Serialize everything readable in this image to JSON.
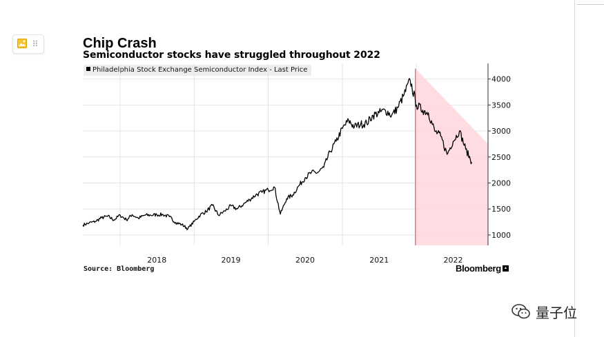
{
  "header": {
    "title": "Chip Crash",
    "subtitle": "Semiconductor stocks have struggled throughout 2022"
  },
  "legend": {
    "label": "Philadelphia Stock Exchange Semiconductor Index - Last Price"
  },
  "footer": {
    "source": "Source: Bloomberg",
    "brand": "Bloomberg"
  },
  "watermark": {
    "text": "量子位"
  },
  "toolbar": {
    "image_icon": "image-icon",
    "drag_icon": "drag-handle-icon"
  },
  "colors": {
    "line": "#000000",
    "highlight_fill": "#ffd6dd",
    "highlight_stroke": "#c0485f",
    "grid": "#e4e4e4"
  },
  "chart_data": {
    "type": "line",
    "title": "Chip Crash",
    "subtitle": "Semiconductor stocks have struggled throughout 2022",
    "series": [
      {
        "name": "Philadelphia Stock Exchange Semiconductor Index - Last Price",
        "points": [
          [
            "2017-07-01",
            1190
          ],
          [
            "2017-08-01",
            1230
          ],
          [
            "2017-09-01",
            1260
          ],
          [
            "2017-10-01",
            1330
          ],
          [
            "2017-11-01",
            1360
          ],
          [
            "2017-12-01",
            1290
          ],
          [
            "2018-01-01",
            1380
          ],
          [
            "2018-02-01",
            1290
          ],
          [
            "2018-03-01",
            1390
          ],
          [
            "2018-04-01",
            1320
          ],
          [
            "2018-05-01",
            1380
          ],
          [
            "2018-06-01",
            1380
          ],
          [
            "2018-07-01",
            1390
          ],
          [
            "2018-08-01",
            1390
          ],
          [
            "2018-09-01",
            1350
          ],
          [
            "2018-10-01",
            1240
          ],
          [
            "2018-11-01",
            1200
          ],
          [
            "2018-12-01",
            1120
          ],
          [
            "2019-01-01",
            1260
          ],
          [
            "2019-02-01",
            1390
          ],
          [
            "2019-03-01",
            1450
          ],
          [
            "2019-04-01",
            1570
          ],
          [
            "2019-05-01",
            1380
          ],
          [
            "2019-06-01",
            1460
          ],
          [
            "2019-07-01",
            1560
          ],
          [
            "2019-08-01",
            1500
          ],
          [
            "2019-09-01",
            1590
          ],
          [
            "2019-10-01",
            1680
          ],
          [
            "2019-11-01",
            1770
          ],
          [
            "2019-12-01",
            1820
          ],
          [
            "2020-01-01",
            1870
          ],
          [
            "2020-02-01",
            1920
          ],
          [
            "2020-03-01",
            1400
          ],
          [
            "2020-04-01",
            1700
          ],
          [
            "2020-05-01",
            1770
          ],
          [
            "2020-06-01",
            1950
          ],
          [
            "2020-07-01",
            2100
          ],
          [
            "2020-08-01",
            2200
          ],
          [
            "2020-09-01",
            2200
          ],
          [
            "2020-10-01",
            2300
          ],
          [
            "2020-11-01",
            2600
          ],
          [
            "2020-12-01",
            2800
          ],
          [
            "2021-01-01",
            3050
          ],
          [
            "2021-02-01",
            3200
          ],
          [
            "2021-03-01",
            3080
          ],
          [
            "2021-04-01",
            3130
          ],
          [
            "2021-05-01",
            3150
          ],
          [
            "2021-06-01",
            3300
          ],
          [
            "2021-07-01",
            3350
          ],
          [
            "2021-08-01",
            3400
          ],
          [
            "2021-09-01",
            3300
          ],
          [
            "2021-10-01",
            3450
          ],
          [
            "2021-11-01",
            3700
          ],
          [
            "2021-12-01",
            3980
          ],
          [
            "2022-01-01",
            3500
          ],
          [
            "2022-02-01",
            3400
          ],
          [
            "2022-03-01",
            3350
          ],
          [
            "2022-04-01",
            3000
          ],
          [
            "2022-05-01",
            2900
          ],
          [
            "2022-06-01",
            2550
          ],
          [
            "2022-07-01",
            2800
          ],
          [
            "2022-08-01",
            3000
          ],
          [
            "2022-09-01",
            2650
          ],
          [
            "2022-10-01",
            2400
          ]
        ]
      }
    ],
    "x_ticks": [
      "2018",
      "2019",
      "2020",
      "2021",
      "2022"
    ],
    "y_ticks": [
      1000,
      1500,
      2000,
      2500,
      3000,
      3500,
      4000
    ],
    "ylim": [
      800,
      4300
    ],
    "xlim": [
      "2017-07-01",
      "2022-12-20"
    ],
    "highlight": {
      "start": "2021-12-27",
      "end": "2022-12-20",
      "from_value": 4200,
      "to_value": 2750
    },
    "yaxis_position": "right",
    "grid": true,
    "legend_position": "top-left"
  }
}
